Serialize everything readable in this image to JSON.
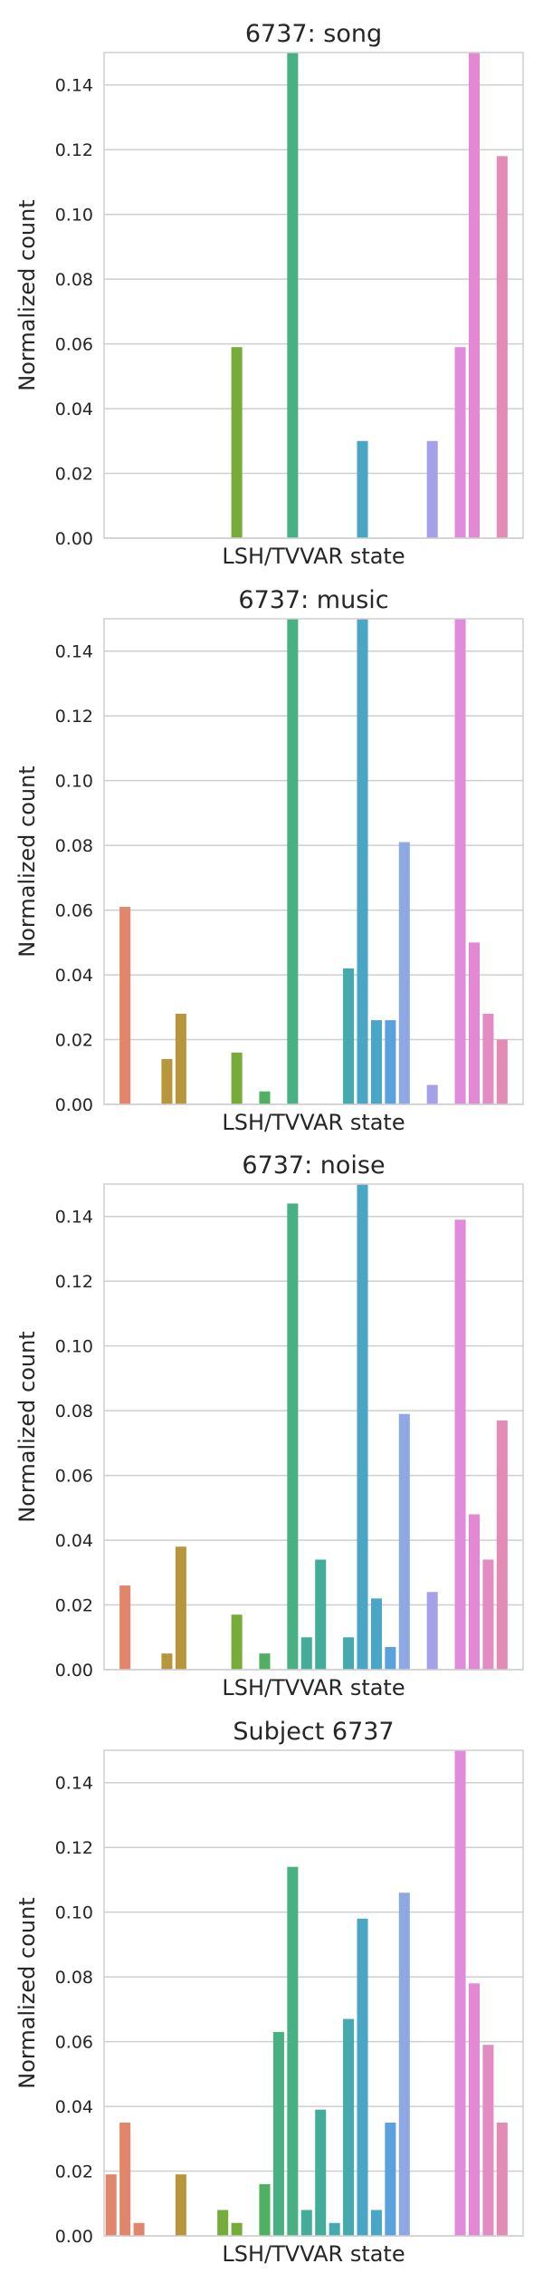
{
  "chart_data": [
    {
      "type": "bar",
      "title": "6737: song",
      "xlabel": "LSH/TVVAR state",
      "ylabel": "Normalized count",
      "ylim": [
        0,
        0.15
      ],
      "yticks": [
        "0.00",
        "0.02",
        "0.04",
        "0.06",
        "0.08",
        "0.10",
        "0.12",
        "0.14"
      ],
      "grid": "horizontal",
      "values": [
        0,
        0,
        0,
        0,
        0,
        0,
        0,
        0,
        0,
        0.059,
        0,
        0,
        0,
        0.15,
        0,
        0,
        0,
        0,
        0.03,
        0,
        0,
        0,
        0,
        0.03,
        0,
        0.059,
        0.15,
        0,
        0.118,
        0
      ]
    },
    {
      "type": "bar",
      "title": "6737: music",
      "xlabel": "LSH/TVVAR state",
      "ylabel": "Normalized count",
      "ylim": [
        0,
        0.15
      ],
      "yticks": [
        "0.00",
        "0.02",
        "0.04",
        "0.06",
        "0.08",
        "0.10",
        "0.12",
        "0.14"
      ],
      "grid": "horizontal",
      "values": [
        0,
        0.061,
        0,
        0,
        0.014,
        0.028,
        0,
        0,
        0,
        0.016,
        0,
        0.004,
        0,
        0.15,
        0,
        0,
        0,
        0.042,
        0.15,
        0.026,
        0.026,
        0.081,
        0,
        0.006,
        0,
        0.15,
        0.05,
        0.028,
        0.02,
        0
      ]
    },
    {
      "type": "bar",
      "title": "6737: noise",
      "xlabel": "LSH/TVVAR state",
      "ylabel": "Normalized count",
      "ylim": [
        0,
        0.15
      ],
      "yticks": [
        "0.00",
        "0.02",
        "0.04",
        "0.06",
        "0.08",
        "0.10",
        "0.12",
        "0.14"
      ],
      "grid": "horizontal",
      "values": [
        0,
        0.026,
        0,
        0,
        0.005,
        0.038,
        0,
        0,
        0,
        0.017,
        0,
        0.005,
        0,
        0.144,
        0.01,
        0.034,
        0,
        0.01,
        0.15,
        0.022,
        0.007,
        0.079,
        0,
        0.024,
        0,
        0.139,
        0.048,
        0.034,
        0.077,
        0
      ]
    },
    {
      "type": "bar",
      "title": "Subject 6737",
      "xlabel": "LSH/TVVAR state",
      "ylabel": "Normalized count",
      "ylim": [
        0,
        0.15
      ],
      "yticks": [
        "0.00",
        "0.02",
        "0.04",
        "0.06",
        "0.08",
        "0.10",
        "0.12",
        "0.14"
      ],
      "grid": "horizontal",
      "values": [
        0.019,
        0.035,
        0.004,
        0,
        0,
        0.019,
        0,
        0,
        0.008,
        0.004,
        0,
        0.016,
        0.063,
        0.114,
        0.008,
        0.039,
        0.004,
        0.067,
        0.098,
        0.008,
        0.035,
        0.106,
        0,
        0,
        0,
        0.15,
        0.078,
        0.059,
        0.035,
        0
      ]
    }
  ],
  "colors": [
    "#e1866a",
    "#e1866a",
    "#e1866a",
    "#b8963c",
    "#b8963c",
    "#b8963c",
    "#8fa336",
    "#8fa336",
    "#77ab3a",
    "#77ab3a",
    "#4fb062",
    "#4fb062",
    "#48b083",
    "#48b083",
    "#44ad99",
    "#44ad99",
    "#44aab0",
    "#44aab0",
    "#49a6c5",
    "#49a6c5",
    "#5aa2dd",
    "#8ea8e4",
    "#a6a0e8",
    "#a6a0e8",
    "#c38fe6",
    "#e08bdc",
    "#e389d3",
    "#e38bc3",
    "#e38bb4",
    "#e38bb4"
  ]
}
